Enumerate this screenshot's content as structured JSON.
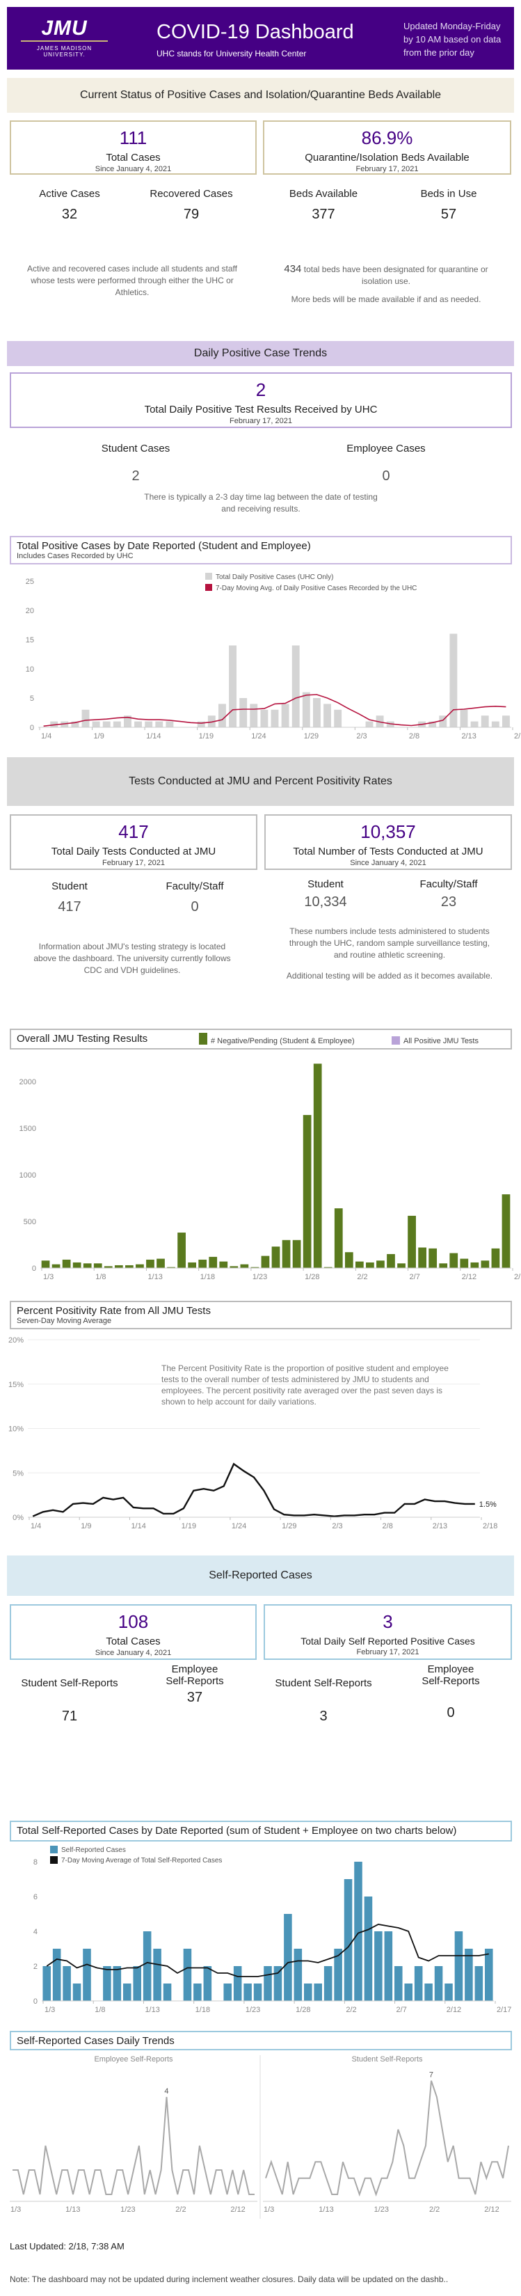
{
  "header": {
    "logo_text": "JMU",
    "logo_sub": "JAMES MADISON UNIVERSITY.",
    "title": "COVID-19 Dashboard",
    "subtitle": "UHC stands for University Health Center",
    "update_note": "Updated Monday-Friday by 10 AM based on data from the prior day",
    "bg": "#450084"
  },
  "status_section": {
    "band_title": "Current Status of Positive Cases and Isolation/Quarantine Beds Available",
    "total_cases_value": "111",
    "total_cases_label": "Total Cases",
    "total_cases_sub": "Since January 4, 2021",
    "beds_pct_value": "86.9%",
    "beds_pct_label": "Quarantine/Isolation Beds Available",
    "beds_pct_sub": "February 17, 2021",
    "active_label": "Active Cases",
    "active_value": "32",
    "recovered_label": "Recovered Cases",
    "recovered_value": "79",
    "beds_avail_label": "Beds Available",
    "beds_avail_value": "377",
    "beds_use_label": "Beds in Use",
    "beds_use_value": "57",
    "note_left": "Active and recovered cases include all students and staff whose tests were performed through either the UHC or Athletics.",
    "note_right_num": "434",
    "note_right": "total beds have been designated for quarantine or isolation use.",
    "note_right2": "More beds will be made available if and as needed."
  },
  "daily_section": {
    "band_title": "Daily Positive Case Trends",
    "value": "2",
    "label": "Total Daily Positive Test Results Received by UHC",
    "sub": "February 17, 2021",
    "student_label": "Student Cases",
    "student_value": "2",
    "employee_label": "Employee Cases",
    "employee_value": "0",
    "note": "There is typically a 2-3 day time lag between the date of testing and receiving results."
  },
  "tests_section": {
    "band_title": "Tests Conducted at JMU and Percent Positivity Rates",
    "daily_value": "417",
    "daily_label": "Total Daily Tests Conducted at JMU",
    "daily_sub": "February 17, 2021",
    "total_value": "10,357",
    "total_label": "Total Number of Tests Conducted at JMU",
    "total_sub": "Since January 4, 2021",
    "student_label": "Student",
    "student_daily": "417",
    "faculty_label": "Faculty/Staff",
    "faculty_daily": "0",
    "student_total": "10,334",
    "faculty_total": "23",
    "note_left": "Information about JMU's testing strategy is located above the dashboard. The university currently follows CDC and VDH guidelines.",
    "note_right": "These numbers include tests administered to students through the UHC, random sample surveillance testing, and routine athletic screening.",
    "note_right2": "Additional testing will be added as it becomes available."
  },
  "self_section": {
    "band_title": "Self-Reported Cases",
    "total_value": "108",
    "total_label": "Total Cases",
    "total_sub": "Since January 4, 2021",
    "daily_value": "3",
    "daily_label": "Total Daily Self Reported Positive Cases",
    "daily_sub": "February 17, 2021",
    "student_label": "Student Self-Reports",
    "student_value": "71",
    "employee_label1": "Employee",
    "employee_label2": "Self-Reports",
    "employee_value": "37",
    "student_daily_label": "Student Self-Reports",
    "student_daily_value": "3",
    "employee_daily_value": "0"
  },
  "footer": {
    "updated": "Last Updated: 2/18, 7:38 AM",
    "note": "Note: The dashboard may not be updated during inclement weather closures. Daily data will be updated on the dashb.."
  },
  "colors": {
    "gray_bar": "#d4d4d4",
    "red_line": "#b5123e",
    "green_bar": "#5a7a1e",
    "lavender": "#b9a3d8",
    "blue_bar": "#4a94b8"
  },
  "chart_data": [
    {
      "id": "positive",
      "type": "bar",
      "title": "Total Positive Cases by Date Reported (Student and Employee)",
      "subtitle": "Includes Cases Recorded by UHC",
      "legend": [
        "Total Daily Positive Cases (UHC Only)",
        "7-Day Moving Avg. of Daily Positive Cases Recorded by the UHC"
      ],
      "ylim": [
        0,
        25
      ],
      "yticks": [
        0,
        5,
        10,
        15,
        20,
        25
      ],
      "xticks": [
        "1/4",
        "1/9",
        "1/14",
        "1/19",
        "1/24",
        "1/29",
        "2/3",
        "2/8",
        "2/13",
        "2/18"
      ],
      "values": [
        0,
        1,
        1,
        1,
        3,
        1,
        1,
        1,
        2,
        1,
        1,
        1,
        1,
        0,
        0,
        1,
        2,
        4,
        14,
        5,
        4,
        3,
        3,
        4,
        14,
        6,
        5,
        4,
        3,
        0,
        0,
        1,
        2,
        1,
        0,
        0,
        1,
        1,
        2,
        16,
        3,
        1,
        2,
        1,
        2
      ],
      "moving_avg": [
        0.2,
        0.4,
        0.6,
        0.8,
        1.2,
        1.3,
        1.4,
        1.6,
        1.7,
        1.4,
        1.3,
        1.3,
        1.2,
        1.0,
        0.8,
        0.7,
        0.9,
        1.3,
        3.0,
        3.1,
        3.1,
        3.2,
        4.0,
        4.1,
        5.0,
        5.5,
        5.6,
        5.0,
        4.2,
        3.2,
        2.3,
        1.3,
        0.9,
        0.6,
        0.4,
        0.3,
        0.5,
        0.8,
        1.2,
        3.0,
        3.1,
        3.3,
        3.5,
        3.6,
        3.5
      ]
    },
    {
      "id": "testing",
      "type": "bar",
      "title": "Overall JMU Testing Results",
      "legend": [
        "# Negative/Pending (Student & Employee)",
        "All Positive JMU Tests"
      ],
      "ylim": [
        0,
        2200
      ],
      "yticks": [
        0,
        500,
        1000,
        1500,
        2000
      ],
      "xticks": [
        "1/3",
        "1/8",
        "1/13",
        "1/18",
        "1/23",
        "1/28",
        "2/2",
        "2/7",
        "2/12",
        "2/17"
      ],
      "values": [
        80,
        40,
        90,
        60,
        50,
        50,
        20,
        30,
        30,
        40,
        90,
        100,
        10,
        380,
        60,
        90,
        120,
        70,
        20,
        40,
        10,
        130,
        230,
        300,
        300,
        1640,
        2190,
        10,
        640,
        170,
        70,
        60,
        80,
        150,
        50,
        560,
        220,
        210,
        50,
        160,
        100,
        60,
        80,
        210,
        790
      ]
    },
    {
      "id": "positivity",
      "type": "line",
      "title": "Percent Positivity Rate from All JMU Tests",
      "subtitle": "Seven-Day Moving Average",
      "ylim": [
        0,
        20
      ],
      "yticks": [
        "0%",
        "5%",
        "10%",
        "15%",
        "20%"
      ],
      "xticks": [
        "1/4",
        "1/9",
        "1/14",
        "1/19",
        "1/24",
        "1/29",
        "2/3",
        "2/8",
        "2/13",
        "2/18"
      ],
      "annotation": "The Percent Positivity Rate is the proportion of positive student and employee tests to the overall number of tests administered by JMU to students and employees.   The percent positivity rate averaged over the past seven days is shown to help account for daily variations.",
      "end_label": "1.5%",
      "values": [
        0.1,
        0.6,
        0.8,
        0.6,
        1.5,
        1.6,
        1.5,
        2.2,
        2.0,
        2.2,
        1.1,
        1.0,
        1.0,
        0.4,
        0.4,
        1.0,
        3.0,
        3.2,
        3.0,
        3.5,
        6.0,
        5.2,
        4.5,
        3.0,
        0.9,
        0.3,
        0.2,
        0.2,
        0.3,
        0.2,
        0.1,
        0.2,
        0.2,
        0.3,
        0.3,
        0.5,
        0.5,
        1.5,
        1.5,
        2.0,
        1.8,
        1.8,
        1.6,
        1.5,
        1.5
      ]
    },
    {
      "id": "selfreported",
      "type": "bar",
      "title": "Total Self-Reported Cases by Date Reported (sum of Student + Employee on two charts below)",
      "legend": [
        "Self-Reported Cases",
        "7-Day Moving Average of Total Self-Reported Cases"
      ],
      "ylim": [
        0,
        8
      ],
      "yticks": [
        0,
        2,
        4,
        6,
        8
      ],
      "xticks": [
        "1/3",
        "1/8",
        "1/13",
        "1/18",
        "1/23",
        "1/28",
        "2/2",
        "2/7",
        "2/12",
        "2/17"
      ],
      "values": [
        2,
        3,
        2,
        1,
        3,
        0,
        2,
        2,
        1,
        2,
        4,
        3,
        1,
        0,
        3,
        1,
        2,
        0,
        1,
        2,
        1,
        1,
        2,
        2,
        5,
        3,
        1,
        1,
        2,
        3,
        7,
        8,
        6,
        4,
        4,
        2,
        1,
        2,
        1,
        2,
        1,
        4,
        3,
        2,
        3
      ],
      "moving_avg": [
        2.0,
        2.4,
        2.3,
        1.9,
        2.1,
        1.9,
        1.8,
        1.8,
        1.9,
        1.9,
        2.2,
        2.1,
        2.0,
        1.6,
        1.9,
        1.9,
        1.9,
        1.6,
        1.6,
        1.4,
        1.4,
        1.4,
        1.5,
        1.6,
        2.2,
        2.3,
        2.3,
        2.2,
        2.4,
        2.6,
        3.1,
        3.9,
        4.1,
        4.4,
        4.3,
        4.2,
        4.0,
        2.5,
        2.3,
        2.6,
        2.6,
        2.6,
        2.6,
        2.6,
        2.7
      ]
    },
    {
      "id": "employee_daily",
      "type": "line",
      "title": "Self-Reported Cases Daily Trends",
      "panel_label": "Employee Self-Reports",
      "ylim": [
        0,
        5
      ],
      "xticks": [
        "1/3",
        "1/13",
        "1/23",
        "2/2",
        "2/12"
      ],
      "peak_label": "4",
      "values": [
        1,
        1,
        0,
        1,
        1,
        0,
        2,
        1,
        0,
        1,
        1,
        0,
        1,
        1,
        0,
        1,
        1,
        0,
        0,
        1,
        1,
        0,
        1,
        2,
        0,
        1,
        0,
        1,
        4,
        1,
        0,
        1,
        1,
        0,
        2,
        1,
        0,
        1,
        1,
        0,
        1,
        0,
        1,
        0,
        0
      ]
    },
    {
      "id": "student_daily",
      "type": "line",
      "panel_label": "Student Self-Reports",
      "ylim": [
        0,
        7.5
      ],
      "xticks": [
        "1/3",
        "1/13",
        "1/23",
        "2/2",
        "2/12"
      ],
      "peak_label": "7",
      "values": [
        1,
        2,
        1,
        0,
        2,
        0,
        1,
        1,
        1,
        2,
        2,
        1,
        0,
        0,
        2,
        1,
        1,
        0,
        1,
        1,
        0,
        1,
        1,
        2,
        4,
        3,
        1,
        1,
        2,
        3,
        7,
        6,
        4,
        2,
        3,
        1,
        1,
        1,
        0,
        2,
        1,
        2,
        2,
        1,
        3
      ]
    }
  ]
}
